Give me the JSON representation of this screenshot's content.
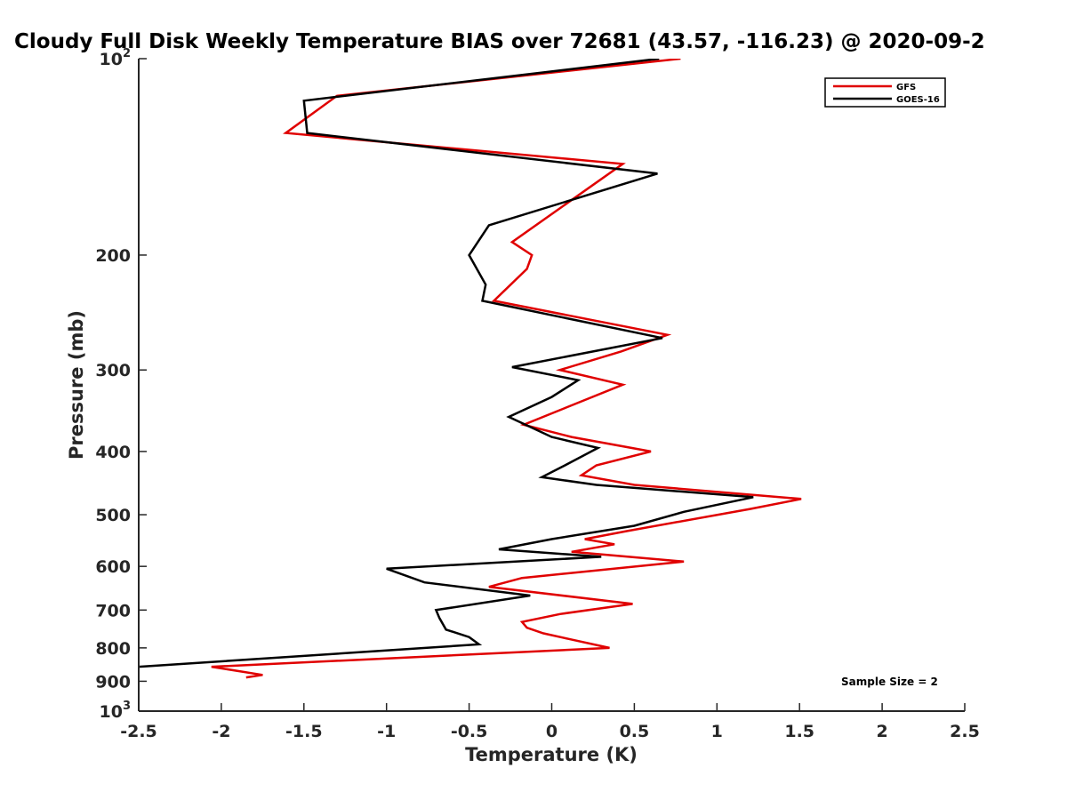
{
  "chart_data": {
    "type": "line",
    "title": "Cloudy Full Disk Weekly Temperature BIAS over 72681 (43.57, -116.23) @ 2020-09-2",
    "xlabel": "Temperature (K)",
    "ylabel": "Pressure (mb)",
    "xlim": [
      -2.5,
      2.5
    ],
    "ylim": [
      100,
      1000
    ],
    "y_scale": "log",
    "y_reversed": true,
    "grid": false,
    "legend_position": "top-right",
    "x_ticks": [
      "-2.5",
      "-2",
      "-1.5",
      "-1",
      "-0.5",
      "0",
      "0.5",
      "1",
      "1.5",
      "2",
      "2.5"
    ],
    "y_ticks": [
      {
        "value": 100,
        "label": "10",
        "sup": "2"
      },
      {
        "value": 200,
        "label": "200",
        "sup": ""
      },
      {
        "value": 300,
        "label": "300",
        "sup": ""
      },
      {
        "value": 400,
        "label": "400",
        "sup": ""
      },
      {
        "value": 500,
        "label": "500",
        "sup": ""
      },
      {
        "value": 600,
        "label": "600",
        "sup": ""
      },
      {
        "value": 700,
        "label": "700",
        "sup": ""
      },
      {
        "value": 800,
        "label": "800",
        "sup": ""
      },
      {
        "value": 900,
        "label": "900",
        "sup": ""
      },
      {
        "value": 1000,
        "label": "10",
        "sup": "3"
      }
    ],
    "annotation": "Sample Size = 2",
    "series": [
      {
        "name": "GFS",
        "color": "#e00000",
        "points": [
          [
            0.78,
            100
          ],
          [
            -1.3,
            114
          ],
          [
            -1.61,
            130
          ],
          [
            0.43,
            145
          ],
          [
            -0.24,
            191
          ],
          [
            -0.12,
            200
          ],
          [
            -0.15,
            210
          ],
          [
            -0.35,
            235
          ],
          [
            0.7,
            265
          ],
          [
            0.42,
            281
          ],
          [
            0.05,
            300
          ],
          [
            0.43,
            316
          ],
          [
            -0.17,
            364
          ],
          [
            0.12,
            380
          ],
          [
            0.6,
            400
          ],
          [
            0.27,
            420
          ],
          [
            0.18,
            435
          ],
          [
            0.5,
            450
          ],
          [
            1.51,
            473
          ],
          [
            1.2,
            490
          ],
          [
            0.45,
            530
          ],
          [
            0.2,
            545
          ],
          [
            0.38,
            555
          ],
          [
            0.12,
            570
          ],
          [
            0.8,
            590
          ],
          [
            -0.18,
            625
          ],
          [
            -0.38,
            645
          ],
          [
            0.49,
            685
          ],
          [
            0.05,
            710
          ],
          [
            -0.18,
            730
          ],
          [
            -0.15,
            745
          ],
          [
            -0.05,
            760
          ],
          [
            0.1,
            775
          ],
          [
            0.35,
            800
          ],
          [
            -2.06,
            855
          ],
          [
            -1.75,
            880
          ],
          [
            -1.85,
            888
          ]
        ]
      },
      {
        "name": "GOES-16",
        "color": "#000000",
        "points": [
          [
            0.65,
            100
          ],
          [
            -1.5,
            116
          ],
          [
            -1.48,
            130
          ],
          [
            0.64,
            150
          ],
          [
            -0.38,
            180
          ],
          [
            -0.5,
            200
          ],
          [
            -0.4,
            222
          ],
          [
            -0.42,
            235
          ],
          [
            0.67,
            268
          ],
          [
            -0.24,
            297
          ],
          [
            0.16,
            311
          ],
          [
            0.0,
            330
          ],
          [
            -0.26,
            354
          ],
          [
            0.0,
            380
          ],
          [
            0.28,
            395
          ],
          [
            0.08,
            420
          ],
          [
            -0.06,
            438
          ],
          [
            0.27,
            450
          ],
          [
            1.22,
            470
          ],
          [
            0.8,
            495
          ],
          [
            0.5,
            520
          ],
          [
            0.0,
            545
          ],
          [
            -0.32,
            565
          ],
          [
            0.3,
            580
          ],
          [
            -1.0,
            605
          ],
          [
            -0.77,
            635
          ],
          [
            -0.13,
            665
          ],
          [
            -0.7,
            700
          ],
          [
            -0.68,
            720
          ],
          [
            -0.64,
            750
          ],
          [
            -0.5,
            770
          ],
          [
            -0.44,
            790
          ],
          [
            -2.5,
            855
          ]
        ]
      }
    ]
  }
}
